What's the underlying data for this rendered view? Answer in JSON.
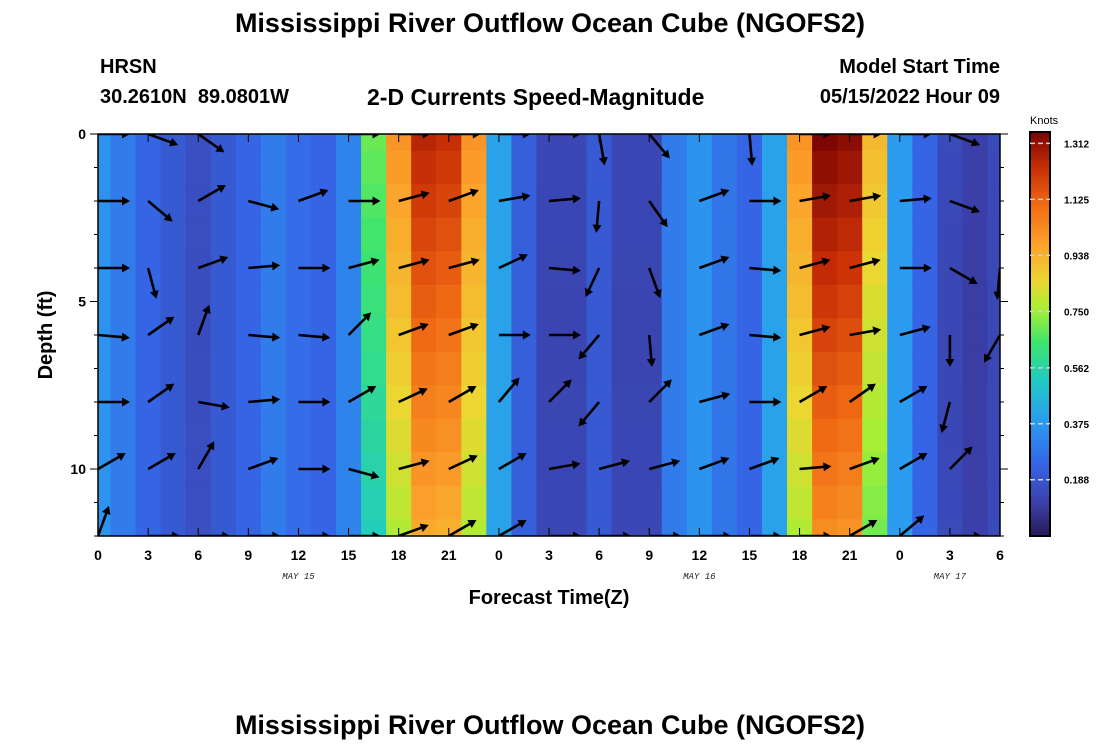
{
  "title": "Mississippi River Outflow Ocean Cube (NGOFS2)",
  "station": {
    "name": "HRSN",
    "coords": "30.2610N  89.0801W"
  },
  "subtitle": "2-D Currents Speed-Magnitude",
  "model_start": {
    "label": "Model Start Time",
    "value": "05/15/2022 Hour 09"
  },
  "second_title": "Mississippi River Outflow Ocean Cube (NGOFS2)",
  "chart_data": {
    "type": "heatmap",
    "title": "2-D Currents Speed-Magnitude",
    "xlabel": "Forecast Time(Z)",
    "ylabel": "Depth (ft)",
    "x_hours": [
      0,
      1.5,
      3,
      4.5,
      6,
      7.5,
      9,
      10.5,
      12,
      13.5,
      15,
      16.5,
      18,
      19.5,
      21,
      22.5,
      24,
      25.5,
      27,
      28.5,
      30,
      31.5,
      33,
      34.5,
      36,
      37.5,
      39,
      40.5,
      42,
      43.5,
      45,
      46.5,
      48,
      49.5,
      51,
      52.5,
      54
    ],
    "x_tick_labels": [
      "0",
      "3",
      "6",
      "9",
      "12",
      "15",
      "18",
      "21",
      "0",
      "3",
      "6",
      "9",
      "12",
      "15",
      "18",
      "21",
      "0",
      "3",
      "6"
    ],
    "x_tick_hours": [
      0,
      3,
      6,
      9,
      12,
      15,
      18,
      21,
      24,
      27,
      30,
      33,
      36,
      39,
      42,
      45,
      48,
      51,
      54
    ],
    "date_labels": [
      {
        "text": "MAY 15",
        "hour": 12
      },
      {
        "text": "MAY 16",
        "hour": 36
      },
      {
        "text": "MAY 17",
        "hour": 51
      }
    ],
    "depths_ft": [
      0,
      1,
      2,
      3,
      4,
      5,
      6,
      7,
      8,
      9,
      10,
      11,
      12
    ],
    "y_tick_labels": [
      "0",
      "5",
      "10"
    ],
    "y_tick_values": [
      0,
      5,
      10
    ],
    "ylim": [
      0,
      12
    ],
    "xlim": [
      0,
      54
    ],
    "colorbar": {
      "unit": "Knots",
      "min": 0,
      "max": 1.35,
      "tick_labels": [
        "1.312",
        "1.125",
        "0.938",
        "0.750",
        "0.562",
        "0.375",
        "0.188"
      ],
      "tick_values": [
        1.312,
        1.125,
        0.938,
        0.75,
        0.562,
        0.375,
        0.188
      ]
    },
    "speed_profile_by_hour": [
      [
        0,
        0.36
      ],
      [
        1.5,
        0.3
      ],
      [
        3,
        0.24
      ],
      [
        4.5,
        0.2
      ],
      [
        6,
        0.18
      ],
      [
        7.5,
        0.2
      ],
      [
        9,
        0.24
      ],
      [
        10.5,
        0.3
      ],
      [
        12,
        0.26
      ],
      [
        13.5,
        0.24
      ],
      [
        15,
        0.32
      ],
      [
        16.5,
        0.62
      ],
      [
        18,
        0.9
      ],
      [
        19.5,
        1.12
      ],
      [
        21,
        1.1
      ],
      [
        22.5,
        0.9
      ],
      [
        24,
        0.4
      ],
      [
        25.5,
        0.22
      ],
      [
        27,
        0.15
      ],
      [
        28.5,
        0.15
      ],
      [
        30,
        0.2
      ],
      [
        31.5,
        0.15
      ],
      [
        33,
        0.15
      ],
      [
        34.5,
        0.3
      ],
      [
        36,
        0.36
      ],
      [
        37.5,
        0.28
      ],
      [
        39,
        0.24
      ],
      [
        40.5,
        0.4
      ],
      [
        42,
        0.9
      ],
      [
        43.5,
        1.2
      ],
      [
        45,
        1.18
      ],
      [
        46.5,
        0.82
      ],
      [
        48,
        0.38
      ],
      [
        49.5,
        0.24
      ],
      [
        51,
        0.16
      ],
      [
        52.5,
        0.12
      ],
      [
        54,
        0.16
      ]
    ],
    "vector_rows_ft": [
      0,
      2,
      4,
      6,
      8,
      10,
      12
    ],
    "vector_columns_hours": [
      0,
      3,
      6,
      9,
      12,
      15,
      18,
      21,
      24,
      27,
      30,
      33,
      36,
      39,
      42,
      45,
      48,
      51,
      54
    ],
    "vector_angles_deg": [
      [
        0,
        20,
        35,
        320,
        335,
        0,
        0,
        0,
        0,
        0,
        80,
        50,
        325,
        85,
        0,
        0,
        0,
        20,
        0
      ],
      [
        0,
        40,
        330,
        15,
        340,
        0,
        345,
        340,
        350,
        355,
        95,
        55,
        340,
        0,
        350,
        350,
        355,
        20,
        0
      ],
      [
        0,
        75,
        340,
        355,
        0,
        345,
        345,
        345,
        335,
        5,
        115,
        70,
        340,
        5,
        345,
        345,
        0,
        30,
        95
      ],
      [
        5,
        325,
        290,
        5,
        5,
        315,
        340,
        340,
        0,
        0,
        130,
        85,
        340,
        5,
        345,
        350,
        345,
        90,
        120
      ],
      [
        0,
        325,
        10,
        355,
        0,
        330,
        335,
        330,
        310,
        315,
        130,
        315,
        345,
        0,
        330,
        325,
        330,
        105,
        320
      ],
      [
        330,
        330,
        300,
        340,
        0,
        15,
        345,
        335,
        330,
        350,
        345,
        345,
        340,
        340,
        355,
        340,
        330,
        315,
        320
      ],
      [
        290,
        0,
        0,
        0,
        0,
        0,
        340,
        330,
        330,
        0,
        0,
        0,
        0,
        0,
        0,
        330,
        320,
        0,
        0
      ]
    ],
    "grid": false,
    "legend": "colorbar-right"
  }
}
